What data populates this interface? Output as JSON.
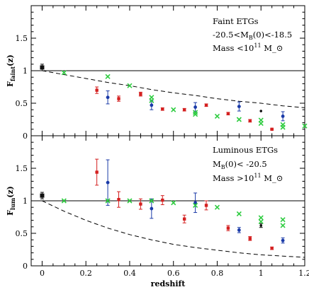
{
  "chart_data": [
    {
      "type": "scatter",
      "panel": "top",
      "ylabel": "F_faint(z)",
      "ylabel_main": "F",
      "ylabel_sub": "faint",
      "ylabel_tail": "(z)",
      "annotation": [
        "Faint ETGs",
        "-20.5<M_B(0)<-18.5",
        "Mass <10^11 M_⊙"
      ],
      "xlim": [
        -0.05,
        1.2
      ],
      "ylim": [
        0,
        2.0
      ],
      "yticks": [
        0,
        0.5,
        1,
        1.5
      ],
      "ytick_labels": [
        "0",
        "0.5",
        "1",
        "1.5"
      ],
      "reference_line": {
        "type": "horizontal",
        "y": 1.0
      },
      "model_curve": {
        "style": "dashed",
        "x": [
          0,
          0.1,
          0.2,
          0.3,
          0.4,
          0.5,
          0.6,
          0.7,
          0.8,
          0.9,
          1.0,
          1.1,
          1.2
        ],
        "y": [
          1.0,
          0.94,
          0.88,
          0.82,
          0.77,
          0.71,
          0.66,
          0.62,
          0.57,
          0.53,
          0.5,
          0.46,
          0.43
        ]
      },
      "series": [
        {
          "color": "#111111",
          "marker": "square",
          "points": [
            {
              "x": 0.0,
              "y": 1.05,
              "err": 0.05
            }
          ]
        },
        {
          "color": "#d42020",
          "marker": "square",
          "points": [
            {
              "x": 0.25,
              "y": 0.7,
              "err": 0.05
            },
            {
              "x": 0.35,
              "y": 0.57,
              "err": 0.04
            },
            {
              "x": 0.45,
              "y": 0.64,
              "err": 0.03
            },
            {
              "x": 0.55,
              "y": 0.41,
              "err": 0.02
            },
            {
              "x": 0.65,
              "y": 0.4,
              "err": 0.02
            },
            {
              "x": 0.75,
              "y": 0.47,
              "err": 0.02
            },
            {
              "x": 0.85,
              "y": 0.34,
              "err": 0.02
            },
            {
              "x": 0.95,
              "y": 0.23,
              "err": 0.02
            },
            {
              "x": 1.05,
              "y": 0.1,
              "err": 0.01
            }
          ]
        },
        {
          "color": "#1a3aa8",
          "marker": "circle",
          "points": [
            {
              "x": 0.3,
              "y": 0.59,
              "err": 0.1
            },
            {
              "x": 0.5,
              "y": 0.47,
              "err": 0.07
            },
            {
              "x": 0.7,
              "y": 0.44,
              "err": 0.07
            },
            {
              "x": 0.9,
              "y": 0.45,
              "err": 0.07
            },
            {
              "x": 1.1,
              "y": 0.3,
              "err": 0.07
            }
          ]
        },
        {
          "color": "#111111",
          "marker": "dot",
          "points": [
            {
              "x": 1.0,
              "y": 0.38,
              "err": 0
            }
          ]
        },
        {
          "color": "#2ecc40",
          "marker": "x",
          "points": [
            {
              "x": 0.1,
              "y": 0.97
            },
            {
              "x": 0.3,
              "y": 0.91
            },
            {
              "x": 0.4,
              "y": 0.77
            },
            {
              "x": 0.5,
              "y": 0.59
            },
            {
              "x": 0.5,
              "y": 0.54
            },
            {
              "x": 0.6,
              "y": 0.4
            },
            {
              "x": 0.7,
              "y": 0.36
            },
            {
              "x": 0.7,
              "y": 0.33
            },
            {
              "x": 0.8,
              "y": 0.3
            },
            {
              "x": 0.9,
              "y": 0.25
            },
            {
              "x": 1.0,
              "y": 0.24
            },
            {
              "x": 1.0,
              "y": 0.19
            },
            {
              "x": 1.1,
              "y": 0.17
            },
            {
              "x": 1.1,
              "y": 0.13
            },
            {
              "x": 1.2,
              "y": 0.15
            }
          ]
        }
      ]
    },
    {
      "type": "scatter",
      "panel": "bottom",
      "xlabel": "redshift",
      "ylabel": "F_lum(z)",
      "ylabel_main": "F",
      "ylabel_sub": "lum",
      "ylabel_tail": "(z)",
      "annotation": [
        "Luminous ETGs",
        "M_B(0)< -20.5",
        "Mass >10^11 M_⊙"
      ],
      "xlim": [
        -0.05,
        1.2
      ],
      "ylim": [
        0,
        2.0
      ],
      "xticks": [
        0,
        0.2,
        0.4,
        0.6,
        0.8,
        1,
        1.2
      ],
      "xtick_labels": [
        "0",
        "0.2",
        "0.4",
        "0.6",
        "0.8",
        "1",
        "1.2"
      ],
      "yticks": [
        0,
        0.5,
        1,
        1.5
      ],
      "ytick_labels": [
        "0",
        "0.5",
        "1",
        "1.5"
      ],
      "reference_line": {
        "type": "horizontal",
        "y": 1.0
      },
      "model_curve": {
        "style": "dashed",
        "x": [
          0,
          0.1,
          0.2,
          0.3,
          0.4,
          0.5,
          0.6,
          0.7,
          0.8,
          0.9,
          1.0,
          1.1,
          1.2
        ],
        "y": [
          1.0,
          0.84,
          0.7,
          0.58,
          0.48,
          0.4,
          0.33,
          0.28,
          0.24,
          0.2,
          0.17,
          0.15,
          0.13
        ]
      },
      "series": [
        {
          "color": "#111111",
          "marker": "square",
          "points": [
            {
              "x": 0.0,
              "y": 1.08,
              "err": 0.05
            }
          ]
        },
        {
          "color": "#d42020",
          "marker": "square",
          "points": [
            {
              "x": 0.25,
              "y": 1.44,
              "err": 0.2
            },
            {
              "x": 0.35,
              "y": 1.02,
              "err": 0.12
            },
            {
              "x": 0.45,
              "y": 0.95,
              "err": 0.08
            },
            {
              "x": 0.55,
              "y": 1.01,
              "err": 0.07
            },
            {
              "x": 0.65,
              "y": 0.72,
              "err": 0.06
            },
            {
              "x": 0.75,
              "y": 0.93,
              "err": 0.07
            },
            {
              "x": 0.85,
              "y": 0.58,
              "err": 0.04
            },
            {
              "x": 0.95,
              "y": 0.42,
              "err": 0.03
            },
            {
              "x": 1.05,
              "y": 0.27,
              "err": 0.02
            }
          ]
        },
        {
          "color": "#1a3aa8",
          "marker": "circle",
          "points": [
            {
              "x": 0.3,
              "y": 1.28,
              "err": 0.35
            },
            {
              "x": 0.5,
              "y": 0.88,
              "err": 0.15
            },
            {
              "x": 0.7,
              "y": 0.97,
              "err": 0.15
            },
            {
              "x": 0.9,
              "y": 0.55,
              "err": 0.04
            },
            {
              "x": 1.1,
              "y": 0.39,
              "err": 0.04
            }
          ]
        },
        {
          "color": "#111111",
          "marker": "dot",
          "points": [
            {
              "x": 1.0,
              "y": 0.62,
              "err": 0.03
            }
          ]
        },
        {
          "color": "#2ecc40",
          "marker": "x",
          "points": [
            {
              "x": 0.1,
              "y": 1.0
            },
            {
              "x": 0.3,
              "y": 1.0
            },
            {
              "x": 0.4,
              "y": 1.0
            },
            {
              "x": 0.5,
              "y": 1.0
            },
            {
              "x": 0.6,
              "y": 0.97
            },
            {
              "x": 0.7,
              "y": 0.93
            },
            {
              "x": 0.8,
              "y": 0.9
            },
            {
              "x": 0.9,
              "y": 0.8
            },
            {
              "x": 1.0,
              "y": 0.74
            },
            {
              "x": 1.0,
              "y": 0.68
            },
            {
              "x": 1.1,
              "y": 0.71
            },
            {
              "x": 1.1,
              "y": 0.62
            }
          ]
        }
      ]
    }
  ]
}
